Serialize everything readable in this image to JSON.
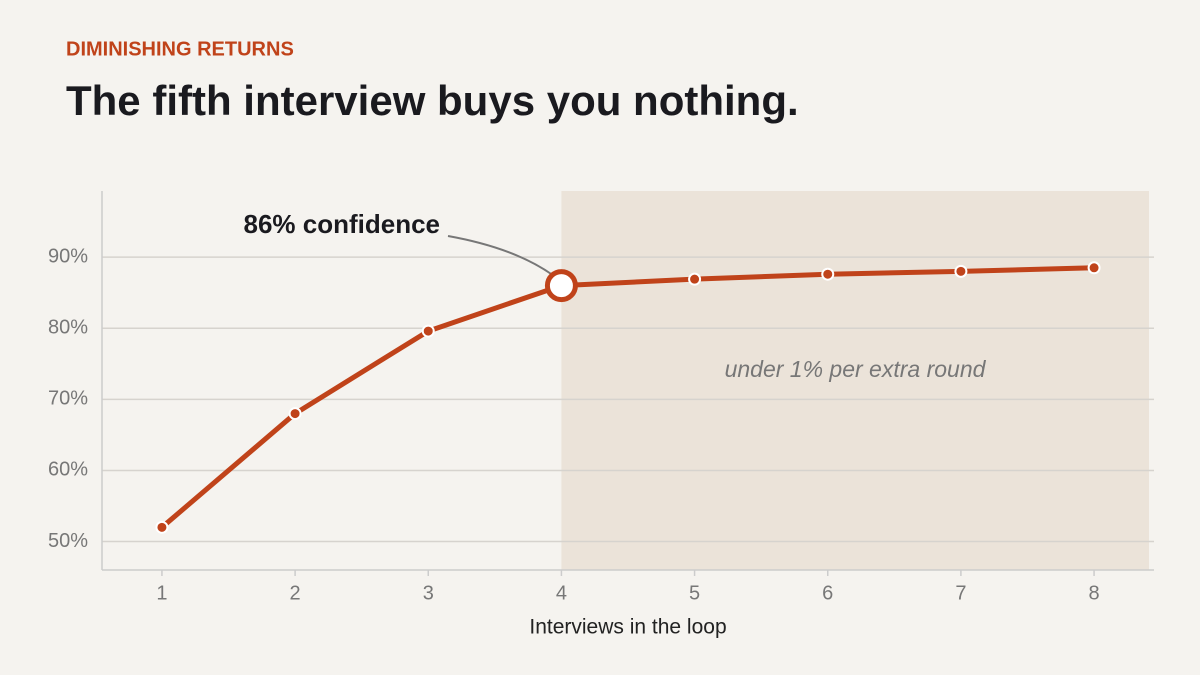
{
  "kicker": "DIMINISHING RETURNS",
  "chart_data": {
    "type": "line",
    "title": "The fifth interview buys you nothing.",
    "x": [
      1,
      2,
      3,
      4,
      5,
      6,
      7,
      8
    ],
    "values": [
      52,
      68,
      79.6,
      86,
      86.9,
      87.6,
      88.0,
      88.5
    ],
    "color": "#c0431a",
    "xlim": [
      0.55,
      8.45
    ],
    "xticks": [
      1,
      2,
      3,
      4,
      5,
      6,
      7,
      8
    ],
    "ylim": [
      46,
      99.3
    ],
    "yticks": [
      {
        "value": 50,
        "label": "50%"
      },
      {
        "value": 60,
        "label": "60%"
      },
      {
        "value": 70,
        "label": "70%"
      },
      {
        "value": 80,
        "label": "80%"
      },
      {
        "value": 90,
        "label": "90%"
      }
    ],
    "grid": true,
    "xlabel": "Interviews in the loop",
    "highlight_from": 4,
    "annotations": [
      {
        "text": "86% confidence",
        "x": 4
      },
      {
        "text": "under 1% per extra round"
      }
    ]
  }
}
